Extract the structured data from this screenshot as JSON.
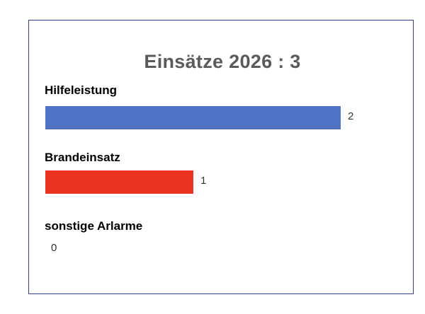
{
  "chart_data": {
    "type": "bar",
    "orientation": "horizontal",
    "title": "Einsätze 2026 : 3",
    "categories": [
      "Hilfeleistung",
      "Brandeinsatz",
      "sonstige Arlarme"
    ],
    "values": [
      2,
      1,
      0
    ],
    "value_labels": [
      "2",
      "1",
      "0"
    ],
    "xlim": [
      0,
      2
    ],
    "grid": false,
    "legend": "none",
    "colors": [
      "#4f72c4",
      "#ea3323",
      "#a5a5a5"
    ]
  }
}
